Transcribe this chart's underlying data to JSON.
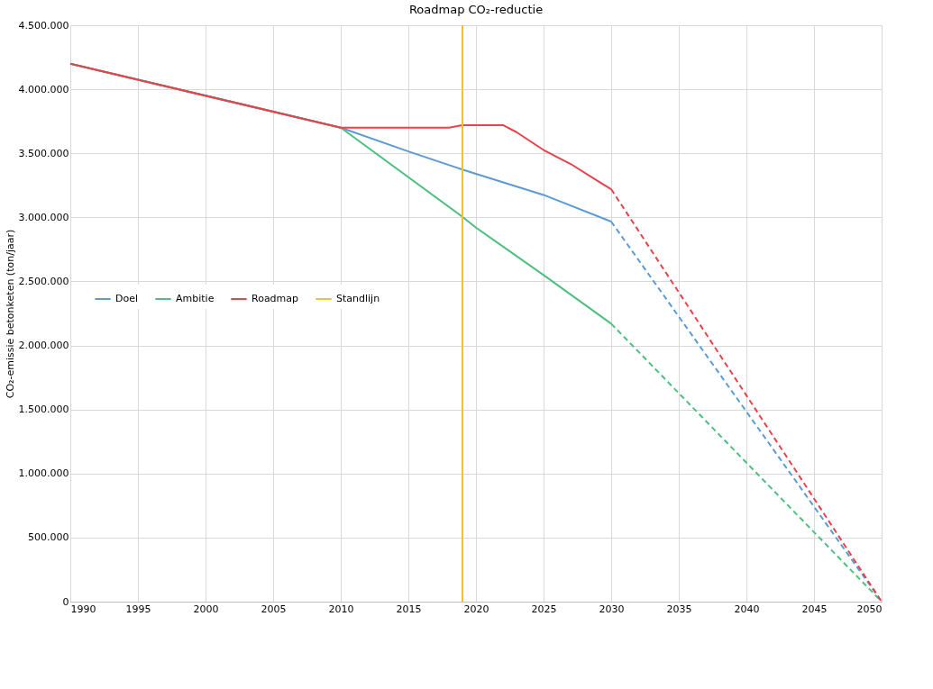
{
  "chart_data": {
    "type": "line",
    "title": "Roadmap CO₂-reductie",
    "ylabel": "CO₂-emissie betonketen (ton/jaar)",
    "xlim": [
      1990,
      2050
    ],
    "xticks": [
      1990,
      1995,
      2000,
      2005,
      2010,
      2015,
      2020,
      2025,
      2030,
      2035,
      2040,
      2045,
      2050
    ],
    "ylim": [
      0,
      4500000
    ],
    "yticks": [
      {
        "value": 0,
        "label": "0"
      },
      {
        "value": 500000,
        "label": "500.000"
      },
      {
        "value": 1000000,
        "label": "1.000.000"
      },
      {
        "value": 1500000,
        "label": "1.500.000"
      },
      {
        "value": 2000000,
        "label": "2.000.000"
      },
      {
        "value": 2500000,
        "label": "2.500.000"
      },
      {
        "value": 3000000,
        "label": "3.000.000"
      },
      {
        "value": 3500000,
        "label": "3.500.000"
      },
      {
        "value": 4000000,
        "label": "4.000.000"
      },
      {
        "value": 4500000,
        "label": "4.500.000"
      }
    ],
    "grid": true,
    "legend": "left",
    "line_style": "solid",
    "marker": "none",
    "series": [
      {
        "name": "Doel",
        "color": "#5b9bd5",
        "x": [
          1990,
          2010,
          2015,
          2019,
          2020,
          2025,
          2030
        ],
        "values": [
          4200000,
          3700000,
          3515000,
          3373000,
          3340000,
          3175000,
          2967000
        ]
      },
      {
        "name": "Ambitie",
        "color": "#4fbf7f",
        "x": [
          1990,
          2010,
          2019,
          2020,
          2025,
          2030
        ],
        "values": [
          4200000,
          3700000,
          3004000,
          2920000,
          2550000,
          2170000
        ]
      },
      {
        "name": "Roadmap",
        "color": "#e8424a",
        "x": [
          1990,
          2010,
          2018,
          2019,
          2022,
          2023,
          2025,
          2027,
          2029,
          2030
        ],
        "values": [
          4200000,
          3700000,
          3700000,
          3720000,
          3720000,
          3665000,
          3526000,
          3417000,
          3285000,
          3220000
        ]
      },
      {
        "color": "#5b9bd5",
        "line_style": "dashed",
        "x": [
          2030,
          2050
        ],
        "values": [
          2967000,
          0
        ]
      },
      {
        "color": "#4fbf7f",
        "line_style": "dashed",
        "x": [
          2030,
          2050
        ],
        "values": [
          2170000,
          0
        ]
      },
      {
        "color": "#e8424a",
        "line_style": "dashed",
        "x": [
          2030,
          2050
        ],
        "values": [
          3220000,
          0
        ]
      },
      {
        "name": "Standlijn",
        "color": "#f2c12e",
        "x": [
          2019,
          2019
        ],
        "values": [
          0,
          4500000
        ]
      }
    ]
  }
}
